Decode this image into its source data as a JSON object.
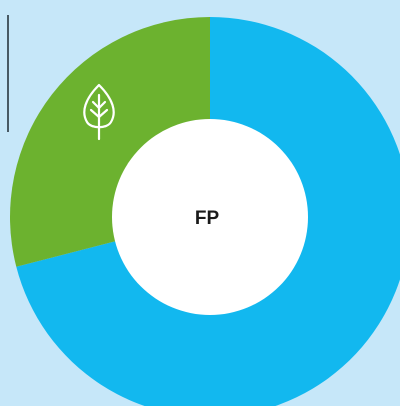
{
  "chart_data": {
    "type": "donut",
    "center_label": "FP",
    "categories": [
      null,
      null
    ],
    "values": [
      71,
      29
    ],
    "colors": [
      "#12b8ef",
      "#6cb22f"
    ],
    "start_angle": 0,
    "direction": "clockwise"
  }
}
